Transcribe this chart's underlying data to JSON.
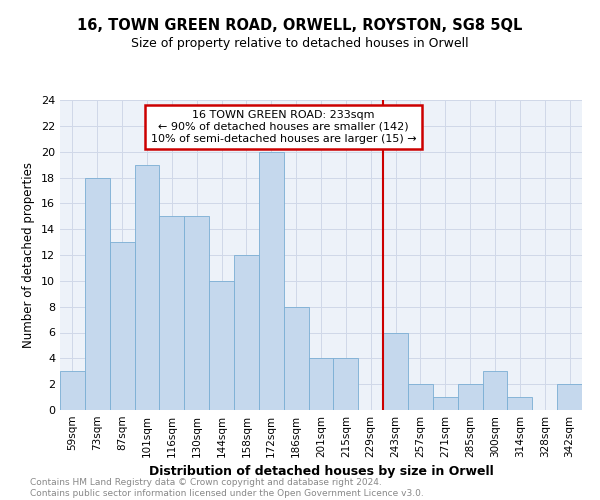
{
  "title": "16, TOWN GREEN ROAD, ORWELL, ROYSTON, SG8 5QL",
  "subtitle": "Size of property relative to detached houses in Orwell",
  "xlabel": "Distribution of detached houses by size in Orwell",
  "ylabel": "Number of detached properties",
  "categories": [
    "59sqm",
    "73sqm",
    "87sqm",
    "101sqm",
    "116sqm",
    "130sqm",
    "144sqm",
    "158sqm",
    "172sqm",
    "186sqm",
    "201sqm",
    "215sqm",
    "229sqm",
    "243sqm",
    "257sqm",
    "271sqm",
    "285sqm",
    "300sqm",
    "314sqm",
    "328sqm",
    "342sqm"
  ],
  "values": [
    3,
    18,
    13,
    19,
    15,
    15,
    10,
    12,
    20,
    8,
    4,
    4,
    0,
    6,
    2,
    1,
    2,
    3,
    1,
    0,
    2
  ],
  "bar_color": "#c5d8ed",
  "bar_edge_color": "#7aaed4",
  "vline_x": 12.5,
  "vline_color": "#cc0000",
  "annotation_line1": "16 TOWN GREEN ROAD: 233sqm",
  "annotation_line2": "← 90% of detached houses are smaller (142)",
  "annotation_line3": "10% of semi-detached houses are larger (15) →",
  "annotation_box_color": "#cc0000",
  "ylim": [
    0,
    24
  ],
  "yticks": [
    0,
    2,
    4,
    6,
    8,
    10,
    12,
    14,
    16,
    18,
    20,
    22,
    24
  ],
  "grid_color": "#d0d8e8",
  "footer_line1": "Contains HM Land Registry data © Crown copyright and database right 2024.",
  "footer_line2": "Contains public sector information licensed under the Open Government Licence v3.0.",
  "bg_color": "#edf2f9"
}
